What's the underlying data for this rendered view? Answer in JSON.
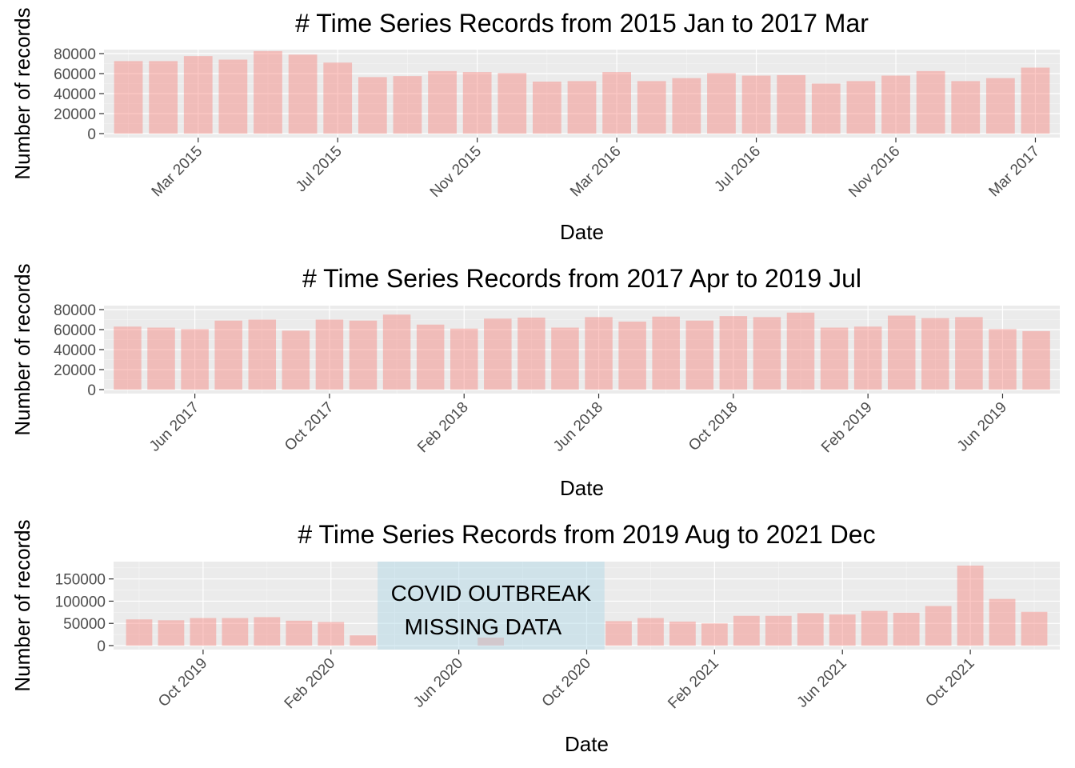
{
  "chart_data": [
    {
      "type": "bar",
      "title": "# Time Series Records from 2015 Jan to 2017 Mar",
      "xlabel": "Date",
      "ylabel": "Number of records",
      "ylim": [
        -4000,
        84000
      ],
      "yticks": [
        0,
        20000,
        40000,
        60000,
        80000
      ],
      "xticks": [
        "Mar 2015",
        "Jul 2015",
        "Nov 2015",
        "Mar 2016",
        "Jul 2016",
        "Nov 2016",
        "Mar 2017"
      ],
      "grid": true,
      "bar_color": "#f8766d",
      "categories": [
        "2015-01",
        "2015-02",
        "2015-03",
        "2015-04",
        "2015-05",
        "2015-06",
        "2015-07",
        "2015-08",
        "2015-09",
        "2015-10",
        "2015-11",
        "2015-12",
        "2016-01",
        "2016-02",
        "2016-03",
        "2016-04",
        "2016-05",
        "2016-06",
        "2016-07",
        "2016-08",
        "2016-09",
        "2016-10",
        "2016-11",
        "2016-12",
        "2017-01",
        "2017-02",
        "2017-03"
      ],
      "values": [
        72500,
        72500,
        77500,
        74000,
        82500,
        79000,
        71000,
        56500,
        57500,
        62500,
        61500,
        60500,
        52000,
        52500,
        61500,
        52500,
        55500,
        60500,
        58000,
        58500,
        50000,
        52500,
        58000,
        62500,
        52500,
        55500,
        66000
      ]
    },
    {
      "type": "bar",
      "title": "# Time Series Records from 2017 Apr to 2019 Jul",
      "xlabel": "Date",
      "ylabel": "Number of records",
      "ylim": [
        -4000,
        84000
      ],
      "yticks": [
        0,
        20000,
        40000,
        60000,
        80000
      ],
      "xticks": [
        "Jun 2017",
        "Oct 2017",
        "Feb 2018",
        "Jun 2018",
        "Oct 2018",
        "Feb 2019",
        "Jun 2019"
      ],
      "grid": true,
      "bar_color": "#f8766d",
      "categories": [
        "2017-04",
        "2017-05",
        "2017-06",
        "2017-07",
        "2017-08",
        "2017-09",
        "2017-10",
        "2017-11",
        "2017-12",
        "2018-01",
        "2018-02",
        "2018-03",
        "2018-04",
        "2018-05",
        "2018-06",
        "2018-07",
        "2018-08",
        "2018-09",
        "2018-10",
        "2018-11",
        "2018-12",
        "2019-01",
        "2019-02",
        "2019-03",
        "2019-04",
        "2019-05",
        "2019-06",
        "2019-07"
      ],
      "values": [
        63000,
        62000,
        60500,
        69000,
        70000,
        59000,
        70000,
        69000,
        75000,
        65000,
        61000,
        71000,
        72000,
        62000,
        72500,
        68000,
        73000,
        69000,
        73500,
        72500,
        77000,
        62000,
        63000,
        74000,
        71500,
        72500,
        60500,
        58500
      ]
    },
    {
      "type": "bar",
      "title": "# Time Series Records from 2019 Aug to 2021 Dec",
      "xlabel": "Date",
      "ylabel": "Number of records",
      "ylim": [
        -9000,
        189000
      ],
      "yticks": [
        0,
        50000,
        100000,
        150000
      ],
      "xticks": [
        "Oct 2019",
        "Feb 2020",
        "Jun 2020",
        "Oct 2020",
        "Feb 2021",
        "Jun 2021",
        "Oct 2021"
      ],
      "grid": true,
      "bar_color": "#f8766d",
      "categories": [
        "2019-08",
        "2019-09",
        "2019-10",
        "2019-11",
        "2019-12",
        "2020-01",
        "2020-02",
        "2020-03",
        "2020-04",
        "2020-05",
        "2020-06",
        "2020-07",
        "2020-08",
        "2020-09",
        "2020-10",
        "2020-11",
        "2020-12",
        "2021-01",
        "2021-02",
        "2021-03",
        "2021-04",
        "2021-05",
        "2021-06",
        "2021-07",
        "2021-08",
        "2021-09",
        "2021-10",
        "2021-11",
        "2021-12"
      ],
      "values": [
        59000,
        57000,
        62000,
        62000,
        64000,
        56000,
        53000,
        23000,
        0,
        0,
        0,
        18000,
        0,
        0,
        0,
        55000,
        62000,
        54000,
        50000,
        67000,
        67000,
        73000,
        70000,
        78000,
        74000,
        89000,
        180000,
        105000,
        76000
      ],
      "highlight": {
        "label_lines": [
          "COVID OUTBREAK",
          "MISSING DATA"
        ],
        "from": "2020-03-15",
        "to": "2020-10-18",
        "color": "#add8e6"
      }
    }
  ]
}
